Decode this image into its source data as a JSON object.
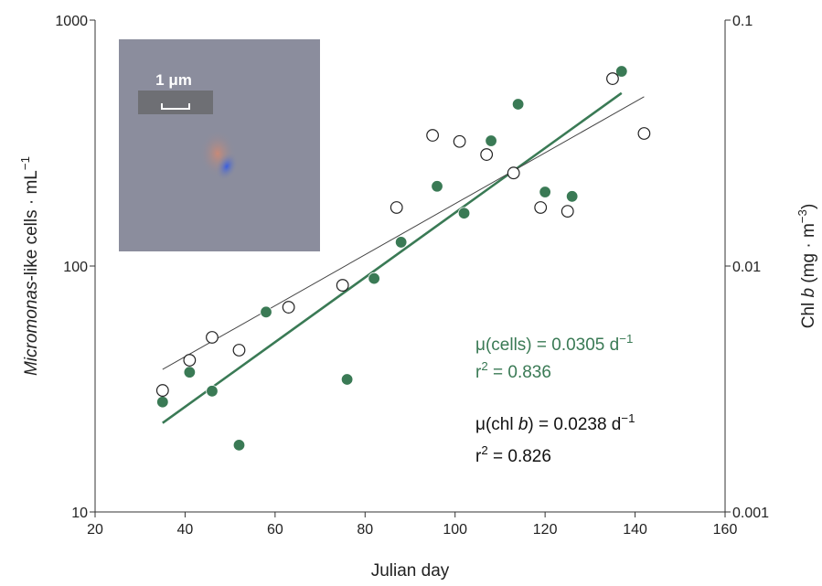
{
  "chart_data": {
    "type": "scatter",
    "x_label": "Julian day",
    "y_label": [
      {
        "text": "Micromonas",
        "style": "italic"
      },
      {
        "text": "-like cells · mL",
        "style": "normal"
      },
      {
        "text": "−1",
        "style": "sup"
      }
    ],
    "y2_label": [
      {
        "text": "Chl ",
        "style": "normal"
      },
      {
        "text": "b",
        "style": "italic"
      },
      {
        "text": " (mg · m",
        "style": "normal"
      },
      {
        "text": "−3",
        "style": "sup"
      },
      {
        "text": ")",
        "style": "normal"
      }
    ],
    "xlim": [
      20,
      160
    ],
    "xticks": [
      20,
      40,
      60,
      80,
      100,
      120,
      140,
      160
    ],
    "ylim": [
      10,
      1000
    ],
    "yticks": [
      10,
      100,
      1000
    ],
    "y2lim": [
      0.001,
      0.1
    ],
    "y2ticks": [
      0.001,
      0.01,
      0.1
    ],
    "log_y": true,
    "series": [
      {
        "color": "#3a7a55",
        "marker": "filled",
        "x": [
          35,
          41,
          46,
          52,
          58,
          76,
          82,
          88,
          96,
          102,
          108,
          114,
          120,
          126,
          137
        ],
        "values": [
          28,
          37,
          31,
          18.7,
          65,
          34.6,
          89,
          125,
          211,
          164,
          323,
          455,
          200,
          192,
          619
        ]
      },
      {
        "color": "#222222",
        "marker": "open",
        "axis": "y2",
        "x": [
          35,
          41,
          46,
          52,
          63,
          75,
          87,
          95,
          101,
          107,
          113,
          119,
          125,
          135,
          142
        ],
        "values": [
          0.00312,
          0.00414,
          0.00513,
          0.00455,
          0.0068,
          0.00835,
          0.0173,
          0.034,
          0.0321,
          0.0284,
          0.0239,
          0.0173,
          0.0167,
          0.0578,
          0.0346
        ]
      }
    ],
    "fits": [
      {
        "color": "#3a7a55",
        "width": 2.6,
        "x": [
          35,
          137
        ],
        "values": [
          23,
          505
        ]
      },
      {
        "color": "#444444",
        "width": 1,
        "axis": "y2",
        "x": [
          35,
          142
        ],
        "values": [
          0.0038,
          0.0488
        ]
      }
    ],
    "annotations": [
      {
        "color": "#3a7a55",
        "lines": [
          [
            {
              "text": "μ(cells) = 0.0305 d",
              "style": "normal"
            },
            {
              "text": "−1",
              "style": "sup"
            }
          ],
          [
            {
              "text": "r",
              "style": "normal"
            },
            {
              "text": "2",
              "style": "sup"
            },
            {
              "text": " = 0.836",
              "style": "normal"
            }
          ]
        ]
      },
      {
        "color": "#111111",
        "lines": [
          [
            {
              "text": "μ(chl ",
              "style": "normal"
            },
            {
              "text": "b",
              "style": "italic"
            },
            {
              "text": ") = 0.0238 d",
              "style": "normal"
            },
            {
              "text": "−1",
              "style": "sup"
            }
          ],
          [
            {
              "text": "r",
              "style": "normal"
            },
            {
              "text": "2",
              "style": "sup"
            },
            {
              "text": " = 0.826",
              "style": "normal"
            }
          ]
        ]
      }
    ],
    "inset_label": "1 μm"
  }
}
